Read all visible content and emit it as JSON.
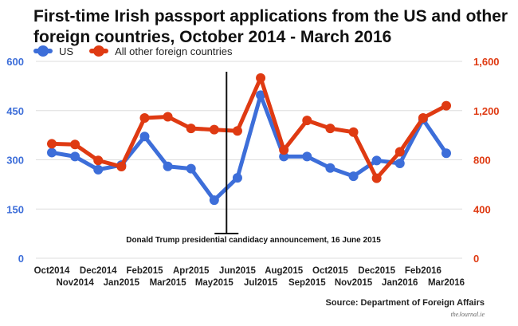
{
  "title": "First-time Irish passport applications from the US and other foreign countries, October 2014 - March 2016",
  "colors": {
    "us": "#3d6ed9",
    "other": "#df3a12",
    "axis_left": "#3d6ed9",
    "axis_right": "#df3a12",
    "grid": "#dddddd"
  },
  "source": "Source: Department of Foreign Affairs",
  "credit": "theJournal.ie",
  "chart_data": {
    "type": "line",
    "title": "First-time Irish passport applications from the US and other foreign countries, October 2014 - March 2016",
    "categories": [
      "Oct2014",
      "Nov2014",
      "Dec2014",
      "Jan2015",
      "Feb2015",
      "Mar2015",
      "Apr2015",
      "May2015",
      "Jun2015",
      "Jul2015",
      "Aug2015",
      "Sep2015",
      "Oct2015",
      "Nov2015",
      "Dec2015",
      "Jan2016",
      "Feb2016",
      "Mar2016"
    ],
    "series": [
      {
        "name": "US",
        "axis": "left",
        "values": [
          322,
          310,
          270,
          284,
          371,
          280,
          273,
          177,
          245,
          497,
          310,
          310,
          275,
          250,
          298,
          289,
          423,
          320
        ]
      },
      {
        "name": "All other foreign countries",
        "axis": "right",
        "values": [
          930,
          925,
          795,
          745,
          1140,
          1150,
          1055,
          1045,
          1035,
          1465,
          880,
          1120,
          1055,
          1025,
          650,
          865,
          1140,
          1240
        ]
      }
    ],
    "y_left": {
      "min": 0,
      "max": 600,
      "ticks": [
        "0",
        "150",
        "300",
        "450",
        "600"
      ]
    },
    "y_right": {
      "min": 0,
      "max": 1600,
      "ticks": [
        "0",
        "400",
        "800",
        "1,200",
        "1,600"
      ]
    },
    "grid": true,
    "legend": "top-left",
    "annotation": {
      "at": "Jun2015",
      "offset": -0.47,
      "label": "Donald Trump presidential candidacy announcement, 16 June 2015"
    }
  }
}
